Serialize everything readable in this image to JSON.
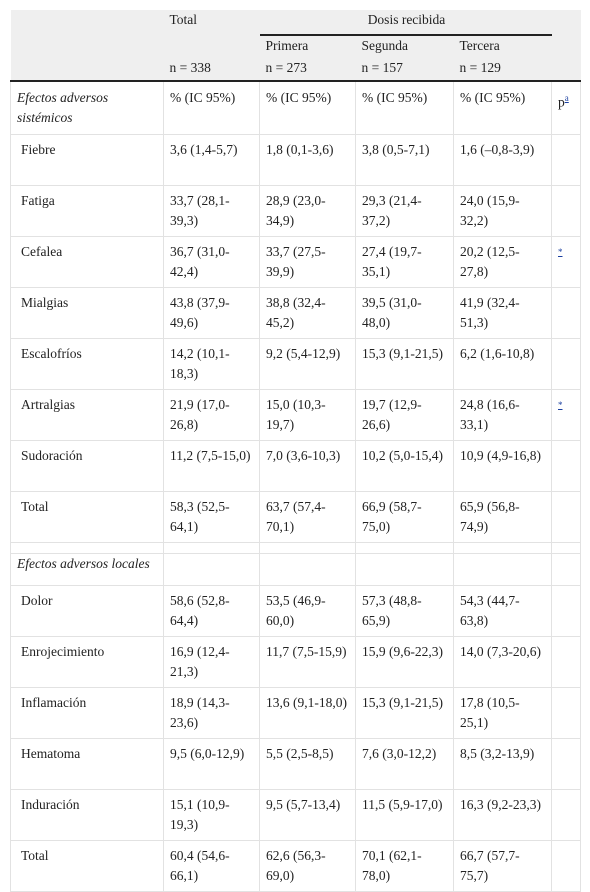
{
  "header": {
    "total_label": "Total",
    "group_label": "Dosis recibida",
    "doses": [
      "Primera",
      "Segunda",
      "Tercera"
    ],
    "n": [
      "n = 338",
      "n = 273",
      "n = 157",
      "n = 129"
    ]
  },
  "sections": [
    {
      "title": "Efectos adversos sistémicos",
      "stat_headers": [
        "% (IC 95%)",
        "% (IC 95%)",
        "% (IC 95%)",
        "% (IC 95%)"
      ],
      "p_header": "p",
      "p_note": "a",
      "rows": [
        {
          "label": "Fiebre",
          "cells": [
            "3,6 (1,4-5,7)",
            "1,8 (0,1-3,6)",
            "3,8 (0,5-7,1)",
            "1,6 (–0,8-3,9)"
          ]
        },
        {
          "label": "Fatiga",
          "cells": [
            "33,7 (28,1-39,3)",
            "28,9 (23,0-34,9)",
            "29,3 (21,4-37,2)",
            "24,0 (15,9-32,2)"
          ]
        },
        {
          "label": "Cefalea",
          "cells": [
            "36,7 (31,0-42,4)",
            "33,7 (27,5-39,9)",
            "27,4 (19,7-35,1)",
            "20,2 (12,5-27,8)"
          ],
          "p": "*"
        },
        {
          "label": "Mialgias",
          "cells": [
            "43,8 (37,9-49,6)",
            "38,8 (32,4-45,2)",
            "39,5 (31,0-48,0)",
            "41,9 (32,4-51,3)"
          ]
        },
        {
          "label": "Escalofríos",
          "cells": [
            "14,2 (10,1-18,3)",
            "9,2 (5,4-12,9)",
            "15,3 (9,1-21,5)",
            "6,2 (1,6-10,8)"
          ]
        },
        {
          "label": "Artralgias",
          "cells": [
            "21,9 (17,0-26,8)",
            "15,0 (10,3-19,7)",
            "19,7 (12,9-26,6)",
            "24,8 (16,6-33,1)"
          ],
          "p": "*"
        },
        {
          "label": "Sudoración",
          "cells": [
            "11,2 (7,5-15,0)",
            "7,0 (3,6-10,3)",
            "10,2 (5,0-15,4)",
            "10,9 (4,9-16,8)"
          ]
        },
        {
          "label": "Total",
          "cells": [
            "58,3 (52,5-64,1)",
            "63,7 (57,4-70,1)",
            "66,9 (58,7-75,0)",
            "65,9 (56,8-74,9)"
          ]
        }
      ]
    },
    {
      "title": "Efectos adversos locales",
      "rows": [
        {
          "label": "Dolor",
          "cells": [
            "58,6 (52,8-64,4)",
            "53,5 (46,9-60,0)",
            "57,3 (48,8-65,9)",
            "54,3 (44,7-63,8)"
          ]
        },
        {
          "label": "Enrojecimiento",
          "cells": [
            "16,9 (12,4-21,3)",
            "11,7 (7,5-15,9)",
            "15,9 (9,6-22,3)",
            "14,0 (7,3-20,6)"
          ]
        },
        {
          "label": "Inflamación",
          "cells": [
            "18,9 (14,3-23,6)",
            "13,6 (9,1-18,0)",
            "15,3 (9,1-21,5)",
            "17,8 (10,5-25,1)"
          ]
        },
        {
          "label": "Hematoma",
          "cells": [
            "9,5 (6,0-12,9)",
            "5,5 (2,5-8,5)",
            "7,6 (3,0-12,2)",
            "8,5 (3,2-13,9)"
          ]
        },
        {
          "label": "Induración",
          "cells": [
            "15,1 (10,9-19,3)",
            "9,5 (5,7-13,4)",
            "11,5 (5,9-17,0)",
            "16,3 (9,2-23,3)"
          ]
        },
        {
          "label": "Total",
          "cells": [
            "60,4 (54,6-66,1)",
            "62,6 (56,3-69,0)",
            "70,1 (62,1-78,0)",
            "66,7 (57,7-75,7)"
          ]
        }
      ]
    }
  ]
}
